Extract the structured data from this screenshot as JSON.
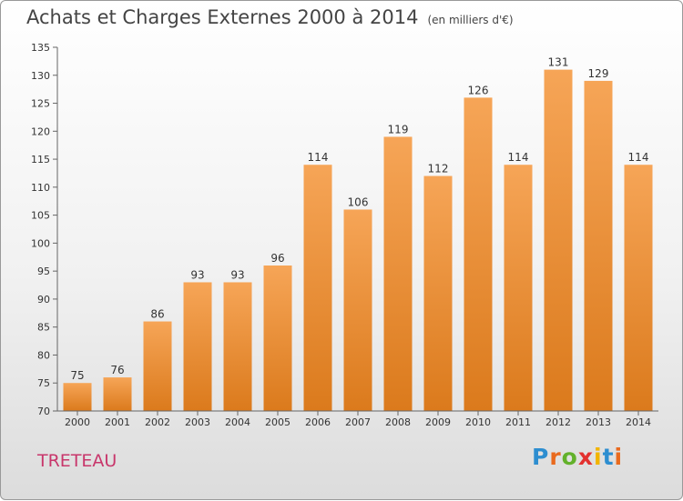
{
  "header": {
    "title": "Achats et Charges Externes 2000 à 2014",
    "subtitle": "(en milliers d'€)"
  },
  "footer": {
    "commune": "TRETEAU",
    "brand": "Proxiti",
    "brand_colors": [
      "#2d8ed0",
      "#e96a1e",
      "#63b12b",
      "#e3312f",
      "#f2b400",
      "#2d8ed0",
      "#e96a1e"
    ]
  },
  "colors": {
    "bar_top": "#f6a557",
    "bar_bottom": "#db7a1c"
  },
  "chart_data": {
    "type": "bar",
    "title": "Achats et Charges Externes 2000 à 2014",
    "subtitle": "(en milliers d'€)",
    "categories": [
      "2000",
      "2001",
      "2002",
      "2003",
      "2004",
      "2005",
      "2006",
      "2007",
      "2008",
      "2009",
      "2010",
      "2011",
      "2012",
      "2013",
      "2014"
    ],
    "values": [
      75,
      76,
      86,
      93,
      93,
      96,
      114,
      106,
      119,
      112,
      126,
      114,
      131,
      129,
      114
    ],
    "ylim": [
      70,
      135
    ],
    "yticks": [
      "70",
      "75",
      "80",
      "85",
      "90",
      "95",
      "100",
      "105",
      "110",
      "115",
      "120",
      "125",
      "130",
      "135"
    ],
    "grid": false,
    "legend": "none"
  }
}
